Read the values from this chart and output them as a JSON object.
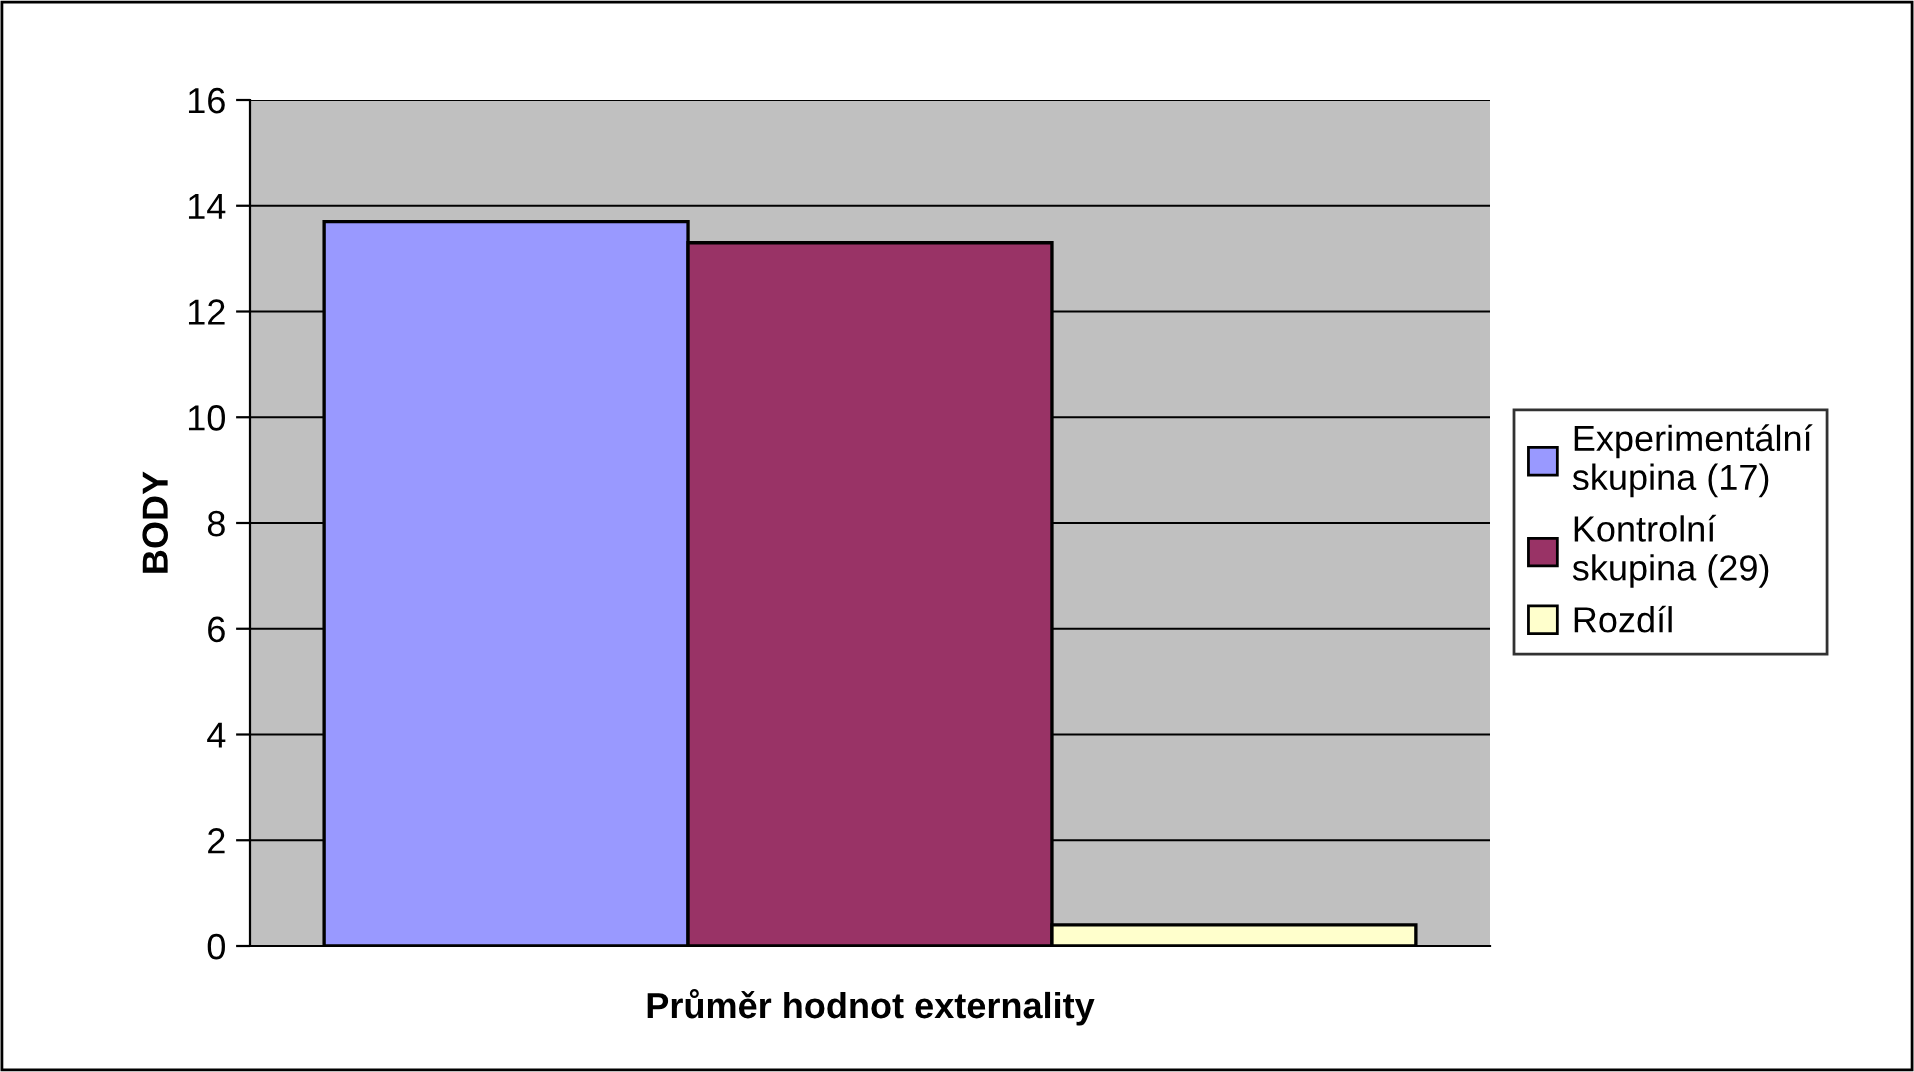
{
  "chart_data": {
    "type": "bar",
    "ylabel": "BODY",
    "xlabel": "Průměr hodnot externality",
    "categories": [
      null
    ],
    "series": [
      {
        "name": "Experimentální skupina (17)",
        "color": "#9999ff",
        "values": [
          13.7
        ]
      },
      {
        "name": "Kontrolní skupina (29)",
        "color": "#993366",
        "values": [
          13.3
        ]
      },
      {
        "name": "Rozdíl",
        "color": "#ffffcc",
        "values": [
          0.4
        ]
      }
    ],
    "ylim": [
      0,
      16
    ],
    "yticks": [
      0,
      2,
      4,
      6,
      8,
      10,
      12,
      14,
      16
    ],
    "grid": "y",
    "legend": "right"
  }
}
